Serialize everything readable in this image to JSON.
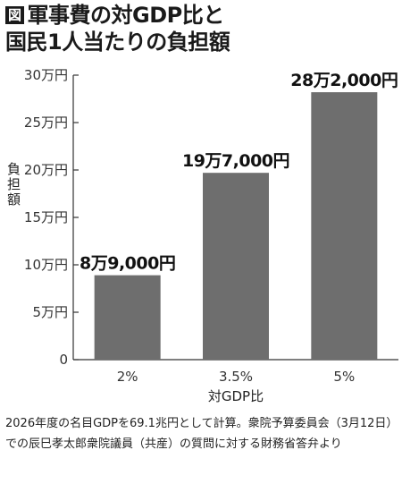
{
  "title": {
    "badge": "図",
    "line1": "軍事費の対GDP比と",
    "line2": "国民1人当たりの負担額"
  },
  "chart_data": {
    "type": "bar",
    "categories": [
      "2%",
      "3.5%",
      "5%"
    ],
    "values": [
      89000,
      197000,
      282000
    ],
    "value_labels": [
      "8万9,000円",
      "19万7,000円",
      "28万2,000円"
    ],
    "xlabel": "対GDP比",
    "ylabel": "負担額",
    "ylim": [
      0,
      300000
    ],
    "yticks": [
      0,
      50000,
      100000,
      150000,
      200000,
      250000,
      300000
    ],
    "ytick_labels": [
      "0",
      "5万円",
      "10万円",
      "15万円",
      "20万円",
      "25万円",
      "30万円"
    ],
    "grid": false,
    "bar_color": "#6e6e6e"
  },
  "note": "2026年度の名目GDPを69.1兆円として計算。衆院予算委員会（3月12日）での辰巳孝太郎衆院議員（共産）の質問に対する財務省答弁より"
}
